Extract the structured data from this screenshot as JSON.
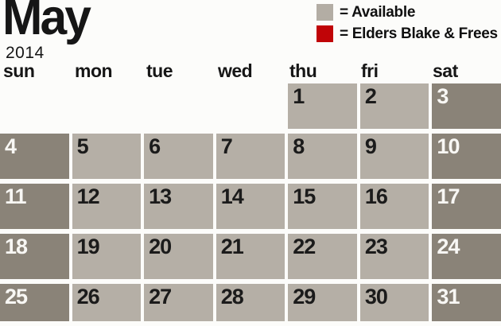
{
  "title": {
    "month": "May",
    "year": "2014"
  },
  "legend": [
    {
      "key": "available",
      "label": "= Available",
      "color": "#b3ada4"
    },
    {
      "key": "booked",
      "label": "= Elders Blake & Frees",
      "color": "#c00407"
    }
  ],
  "day_headers": [
    "sun",
    "mon",
    "tue",
    "wed",
    "thu",
    "fri",
    "sat"
  ],
  "weeks": [
    [
      "",
      "",
      "",
      "",
      "1",
      "2",
      "3"
    ],
    [
      "4",
      "5",
      "6",
      "7",
      "8",
      "9",
      "10"
    ],
    [
      "11",
      "12",
      "13",
      "14",
      "15",
      "16",
      "17"
    ],
    [
      "18",
      "19",
      "20",
      "21",
      "22",
      "23",
      "24"
    ],
    [
      "25",
      "26",
      "27",
      "28",
      "29",
      "30",
      "31"
    ]
  ],
  "day_status": "available",
  "colors": {
    "background": "#fcfcfa",
    "weekday_cell": "#b5afa6",
    "weekend_cell": "#8a8378",
    "available_swatch": "#b3ada4",
    "booked_swatch": "#c00407",
    "text": "#161616",
    "weekend_number": "#f8f7f4"
  }
}
